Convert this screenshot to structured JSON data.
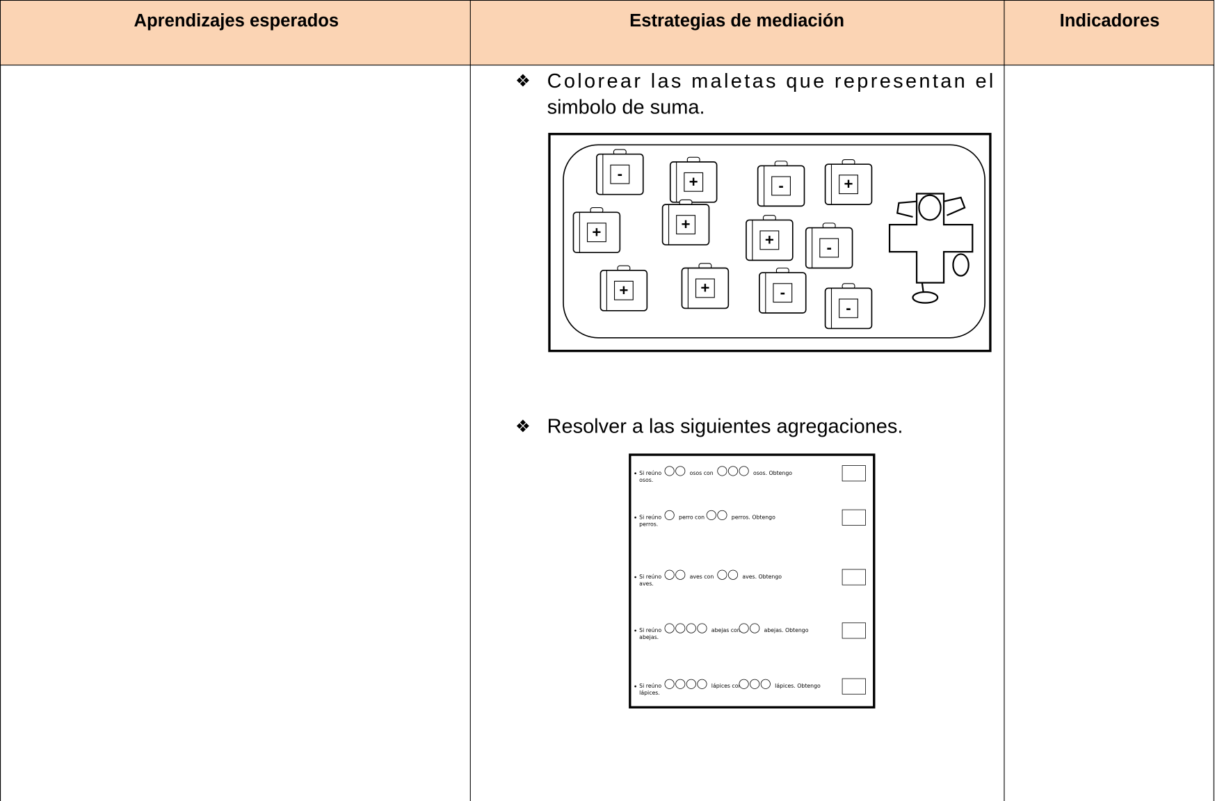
{
  "table": {
    "headers": [
      "Aprendizajes esperados",
      "Estrategias de mediación",
      "Indicadores"
    ],
    "activities": [
      {
        "lines": [
          "Colorear las maletas que representan el",
          "simbolo de suma."
        ],
        "suitcase_signs": [
          "-",
          "+",
          "-",
          "+",
          "+",
          "+",
          "+",
          "-",
          "+",
          "+",
          "-",
          "-"
        ]
      },
      {
        "lines": [
          "Resolver a las siguientes agregaciones."
        ],
        "worksheet": [
          {
            "parts": [
              "Si reúno",
              "osos con",
              "osos. Obtengo"
            ],
            "second": "osos."
          },
          {
            "parts": [
              "Si reúno",
              "perro con",
              "perros. Obtengo"
            ],
            "second": "perros."
          },
          {
            "parts": [
              "Si reúno",
              "aves con",
              "aves. Obtengo"
            ],
            "second": "aves."
          },
          {
            "parts": [
              "Si reúno",
              "abejas con",
              "abejas. Obtengo"
            ],
            "second": "abejas."
          },
          {
            "parts": [
              "Si reúno",
              "lápices con",
              "lápices. Obtengo"
            ],
            "second": "lápices."
          }
        ]
      }
    ]
  }
}
